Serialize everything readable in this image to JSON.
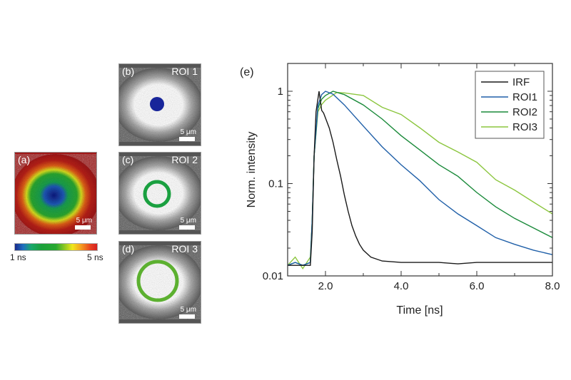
{
  "panels": [
    {
      "label": "(a)",
      "roi": "",
      "scale": "5 μm"
    },
    {
      "label": "(b)",
      "roi": "ROI 1",
      "scale": "5 μm"
    },
    {
      "label": "(c)",
      "roi": "ROI 2",
      "scale": "5 μm"
    },
    {
      "label": "(d)",
      "roi": "ROI 3",
      "scale": "5 μm"
    }
  ],
  "colorbar": {
    "min_label": "1 ns",
    "max_label": "5 ns"
  },
  "chart_data": {
    "type": "line",
    "panel_label": "(e)",
    "xlabel": "Time [ns]",
    "ylabel": "Norm. intensity",
    "xlim": [
      1.0,
      8.0
    ],
    "ylim": [
      0.01,
      2
    ],
    "yscale": "log",
    "xticks": [
      2.0,
      4.0,
      6.0,
      8.0
    ],
    "xtick_labels": [
      "2.0",
      "4.0",
      "6.0",
      "8.0"
    ],
    "yticks": [
      0.01,
      0.1,
      1
    ],
    "ytick_labels": [
      "0.01",
      "0.1",
      "1"
    ],
    "legend_position": "top-right",
    "series": [
      {
        "name": "IRF",
        "color": "#1a1a1a",
        "x": [
          1.0,
          1.2,
          1.4,
          1.6,
          1.65,
          1.7,
          1.75,
          1.83,
          1.9,
          1.95,
          2.1,
          2.2,
          2.3,
          2.4,
          2.5,
          2.6,
          2.7,
          2.8,
          2.9,
          3.0,
          3.2,
          3.5,
          4.0,
          4.5,
          5.0,
          5.5,
          6.0,
          6.5,
          7.0,
          7.5,
          8.0
        ],
        "y": [
          0.013,
          0.013,
          0.013,
          0.013,
          0.03,
          0.2,
          0.6,
          1.0,
          0.62,
          0.58,
          0.4,
          0.28,
          0.18,
          0.12,
          0.075,
          0.05,
          0.035,
          0.027,
          0.022,
          0.019,
          0.016,
          0.0145,
          0.014,
          0.014,
          0.014,
          0.0135,
          0.014,
          0.014,
          0.014,
          0.014,
          0.014
        ]
      },
      {
        "name": "ROI1",
        "color": "#1f5fa8",
        "x": [
          1.0,
          1.2,
          1.4,
          1.6,
          1.65,
          1.7,
          1.8,
          1.9,
          2.0,
          2.2,
          2.5,
          3.0,
          3.5,
          4.0,
          4.5,
          5.0,
          5.5,
          6.0,
          6.5,
          7.0,
          7.5,
          8.0
        ],
        "y": [
          0.013,
          0.014,
          0.013,
          0.014,
          0.04,
          0.2,
          0.7,
          0.92,
          1.0,
          0.93,
          0.71,
          0.42,
          0.25,
          0.16,
          0.107,
          0.067,
          0.047,
          0.035,
          0.026,
          0.022,
          0.019,
          0.017
        ]
      },
      {
        "name": "ROI2",
        "color": "#1a8a3a",
        "x": [
          1.0,
          1.2,
          1.4,
          1.6,
          1.65,
          1.7,
          1.8,
          1.9,
          2.0,
          2.2,
          2.5,
          3.0,
          3.5,
          4.0,
          4.5,
          5.0,
          5.5,
          6.0,
          6.5,
          7.0,
          7.5,
          8.0
        ],
        "y": [
          0.013,
          0.014,
          0.013,
          0.014,
          0.04,
          0.2,
          0.65,
          0.82,
          0.9,
          1.0,
          0.92,
          0.71,
          0.5,
          0.33,
          0.23,
          0.16,
          0.12,
          0.08,
          0.056,
          0.042,
          0.033,
          0.026
        ]
      },
      {
        "name": "ROI3",
        "color": "#8cc63f",
        "x": [
          1.0,
          1.2,
          1.4,
          1.6,
          1.65,
          1.7,
          1.8,
          1.9,
          2.0,
          2.3,
          2.5,
          3.0,
          3.5,
          4.0,
          4.5,
          5.0,
          5.5,
          6.0,
          6.5,
          7.0,
          7.5,
          8.0
        ],
        "y": [
          0.013,
          0.016,
          0.012,
          0.016,
          0.04,
          0.2,
          0.6,
          0.72,
          0.8,
          0.97,
          0.96,
          0.9,
          0.67,
          0.56,
          0.4,
          0.28,
          0.22,
          0.17,
          0.11,
          0.085,
          0.063,
          0.047
        ]
      }
    ]
  }
}
